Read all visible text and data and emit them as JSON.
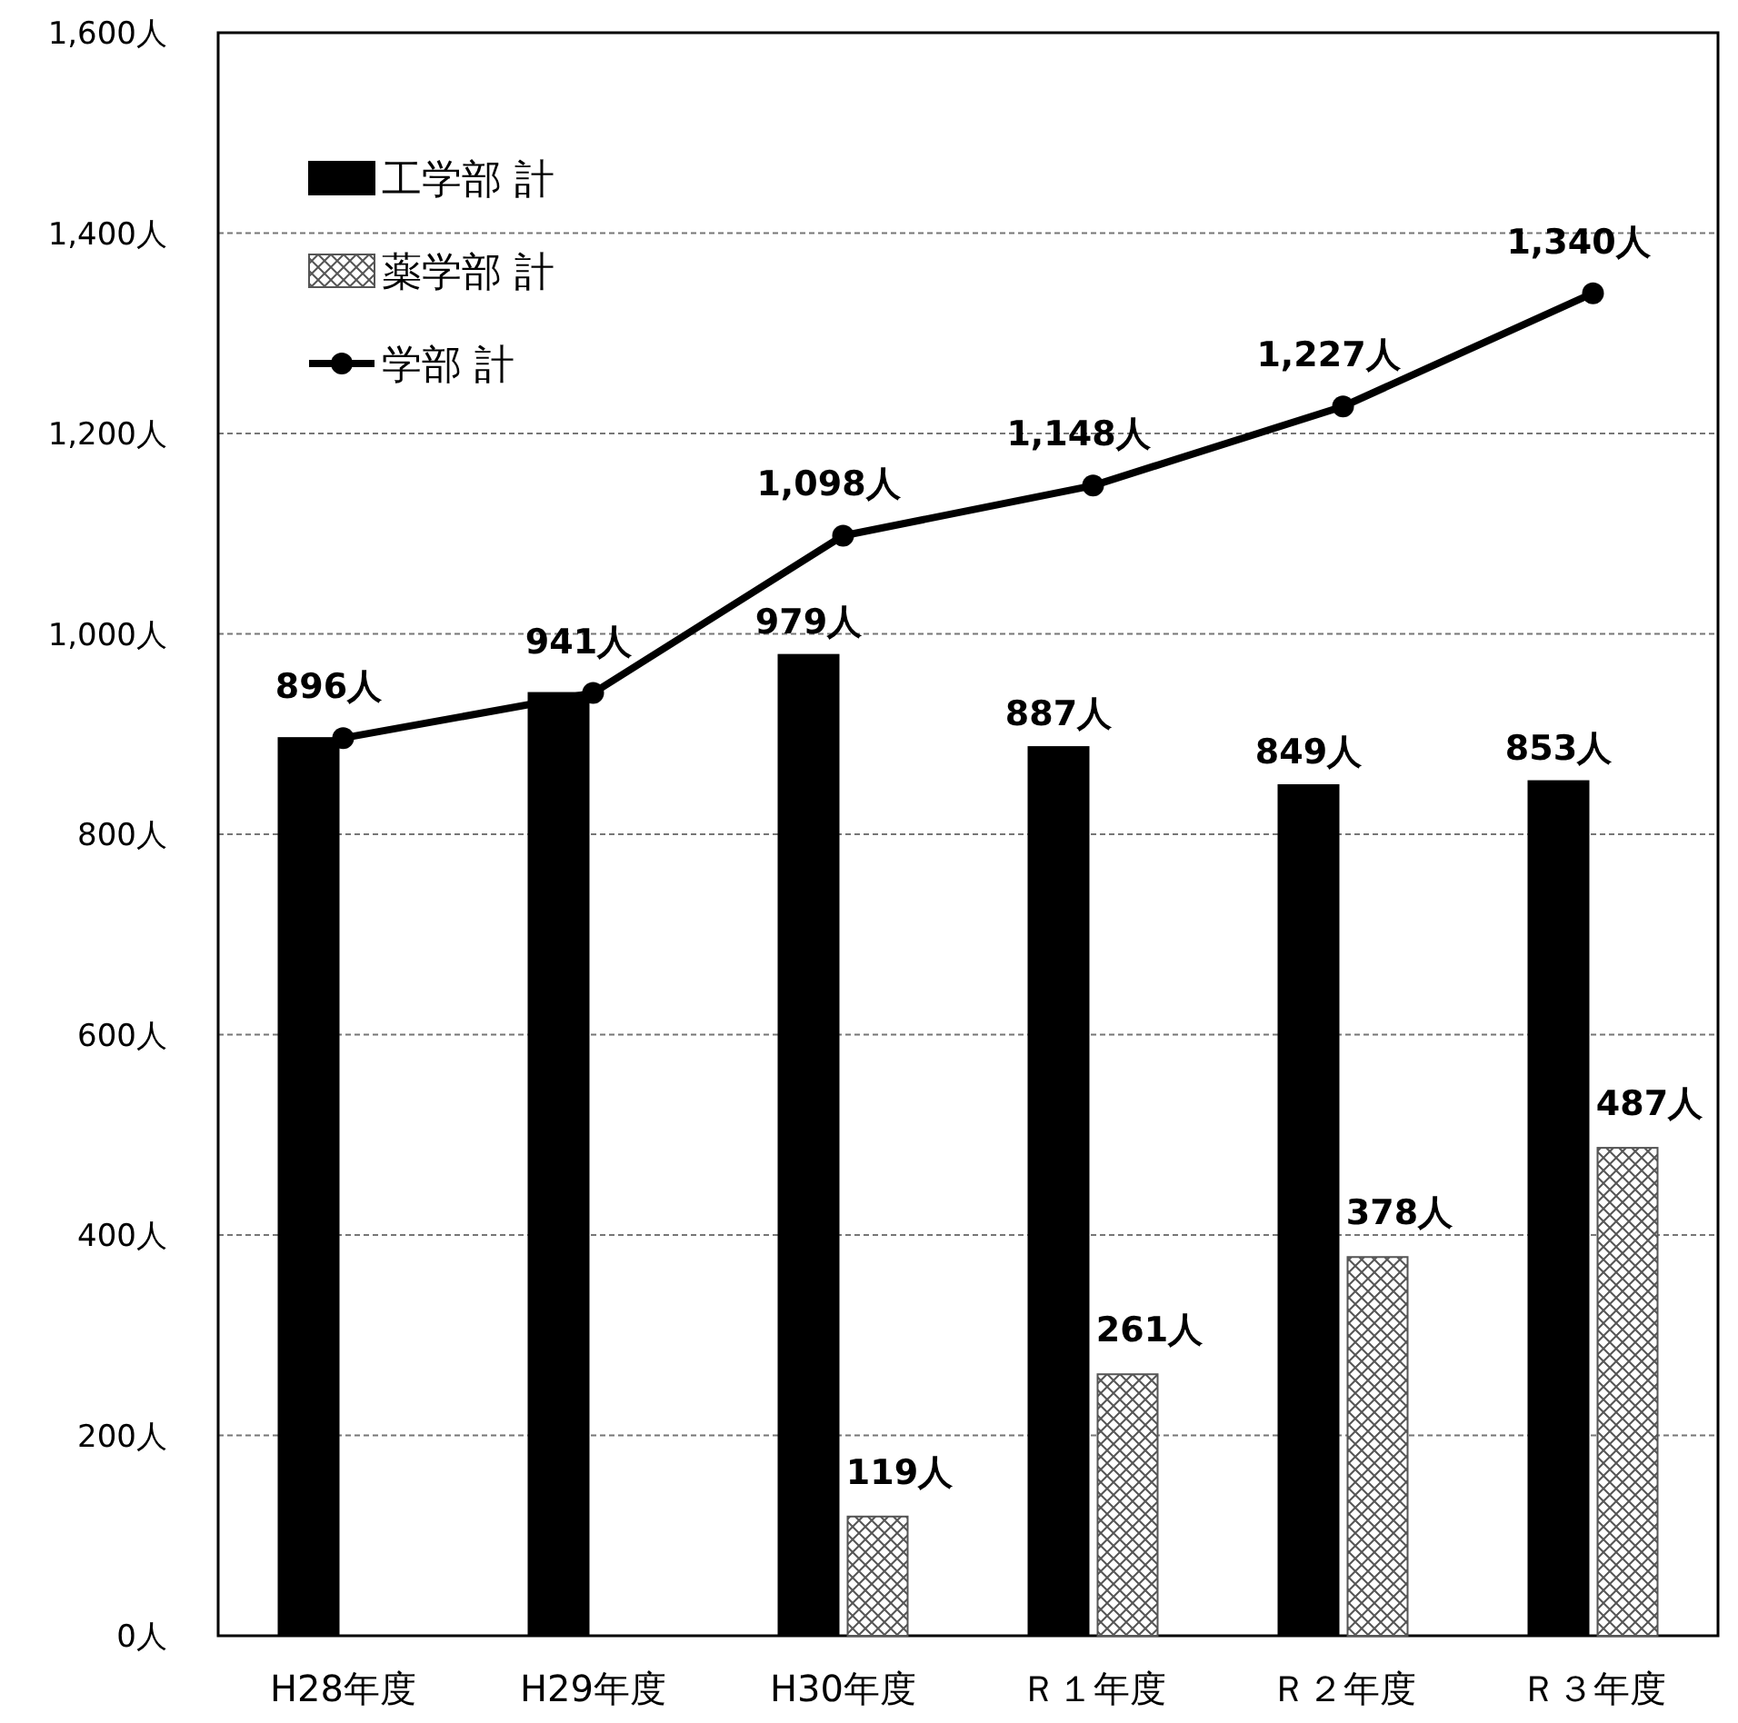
{
  "chart_data": {
    "type": "bar",
    "categories": [
      "H28年度",
      "H29年度",
      "H30年度",
      "Ｒ１年度",
      "Ｒ２年度",
      "Ｒ３年度"
    ],
    "series": [
      {
        "name": "工学部 計",
        "color": "#000000",
        "values": [
          896,
          941,
          979,
          887,
          849,
          853
        ],
        "value_labels": [
          null,
          null,
          "979人",
          "887人",
          "849人",
          "853人"
        ]
      },
      {
        "name": "薬学部 計",
        "color": "#555555",
        "values": [
          null,
          null,
          119,
          261,
          378,
          487
        ],
        "value_labels": [
          null,
          null,
          "119人",
          "261人",
          "378人",
          "487人"
        ]
      },
      {
        "name": "学部 計",
        "type": "line",
        "color": "#000000",
        "marker": "circle",
        "values": [
          896,
          941,
          1098,
          1148,
          1227,
          1340
        ],
        "value_labels": [
          "896人",
          "941人",
          "1,098人",
          "1,148人",
          "1,227人",
          "1,340人"
        ]
      }
    ],
    "ylim": [
      0,
      1600
    ],
    "yticks": [
      {
        "value": 0,
        "label": "0人"
      },
      {
        "value": 200,
        "label": "200人"
      },
      {
        "value": 400,
        "label": "400人"
      },
      {
        "value": 600,
        "label": "600人"
      },
      {
        "value": 800,
        "label": "800人"
      },
      {
        "value": 1000,
        "label": "1,000人"
      },
      {
        "value": 1200,
        "label": "1,200人"
      },
      {
        "value": 1400,
        "label": "1,400人"
      },
      {
        "value": 1600,
        "label": "1,600人"
      }
    ],
    "grid": "y",
    "legend": "top left"
  }
}
